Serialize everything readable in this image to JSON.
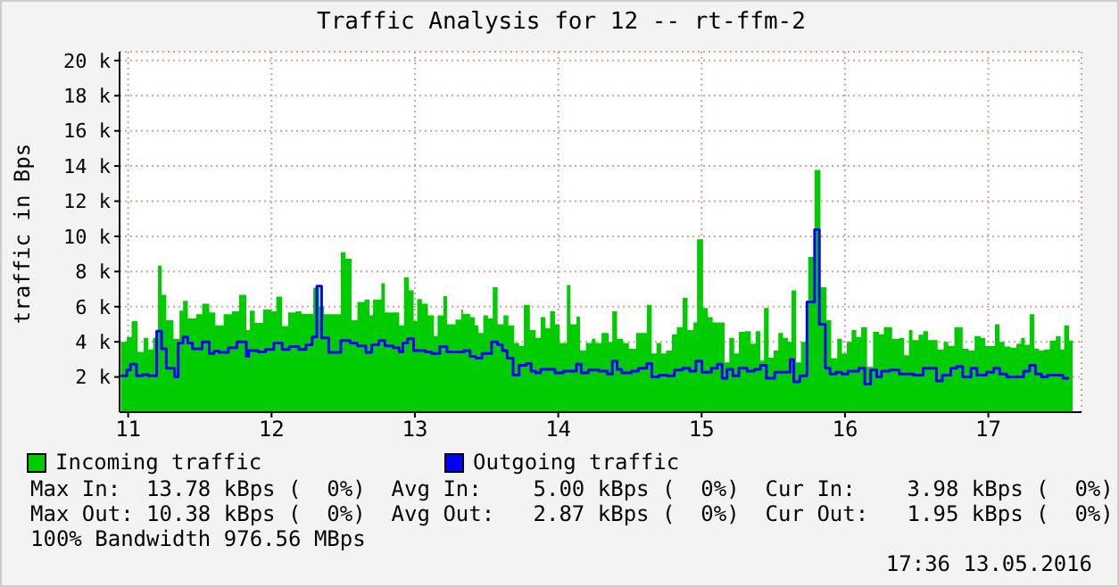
{
  "chart_data": {
    "type": "area",
    "title": "Traffic Analysis for 12 -- rt-ffm-2",
    "ylabel": "traffic in Bps",
    "xlim": [
      10.94,
      17.65
    ],
    "xticks": [
      11,
      12,
      13,
      14,
      15,
      16,
      17
    ],
    "ylim": [
      0,
      20500
    ],
    "yticks": [
      {
        "value": 2000,
        "label": "2 k"
      },
      {
        "value": 4000,
        "label": "4 k"
      },
      {
        "value": 6000,
        "label": "6 k"
      },
      {
        "value": 8000,
        "label": "8 k"
      },
      {
        "value": 10000,
        "label": "10 k"
      },
      {
        "value": 12000,
        "label": "12 k"
      },
      {
        "value": 14000,
        "label": "14 k"
      },
      {
        "value": 16000,
        "label": "16 k"
      },
      {
        "value": 18000,
        "label": "18 k"
      },
      {
        "value": 20000,
        "label": "20 k"
      }
    ],
    "grid": true,
    "legend": "bottom",
    "series": [
      {
        "name": "Incoming traffic",
        "color": "#00cc00",
        "x": [
          10.949,
          10.991,
          11.024,
          11.066,
          11.108,
          11.141,
          11.174,
          11.208,
          11.233,
          11.266,
          11.316,
          11.358,
          11.383,
          11.416,
          11.474,
          11.516,
          11.566,
          11.608,
          11.666,
          11.724,
          11.774,
          11.824,
          11.849,
          11.883,
          11.941,
          11.999,
          12.033,
          12.074,
          12.116,
          12.166,
          12.208,
          12.291,
          12.333,
          12.366,
          12.449,
          12.483,
          12.516,
          12.558,
          12.599,
          12.649,
          12.683,
          12.708,
          12.766,
          12.791,
          12.849,
          12.891,
          12.924,
          12.958,
          12.991,
          13.016,
          13.049,
          13.091,
          13.133,
          13.158,
          13.199,
          13.224,
          13.283,
          13.324,
          13.335,
          13.385,
          13.418,
          13.443,
          13.477,
          13.51,
          13.543,
          13.577,
          13.618,
          13.652,
          13.693,
          13.727,
          13.76,
          13.802,
          13.843,
          13.877,
          13.91,
          13.943,
          13.977,
          14.01,
          14.06,
          14.085,
          14.127,
          14.152,
          14.193,
          14.235,
          14.26,
          14.302,
          14.352,
          14.377,
          14.41,
          14.452,
          14.493,
          14.543,
          14.618,
          14.652,
          14.685,
          14.718,
          14.752,
          14.793,
          14.827,
          14.868,
          14.902,
          14.943,
          14.968,
          15.01,
          15.043,
          15.077,
          15.118,
          15.16,
          15.193,
          15.227,
          15.26,
          15.302,
          15.343,
          15.377,
          15.41,
          15.435,
          15.468,
          15.502,
          15.535,
          15.568,
          15.602,
          15.627,
          15.66,
          15.693,
          15.743,
          15.788,
          15.829,
          15.871,
          15.904,
          15.946,
          15.979,
          16.013,
          16.046,
          16.079,
          16.113,
          16.154,
          16.196,
          16.238,
          16.271,
          16.329,
          16.379,
          16.413,
          16.446,
          16.471,
          16.513,
          16.546,
          16.579,
          16.646,
          16.688,
          16.721,
          16.763,
          16.821,
          16.863,
          16.904,
          16.946,
          16.979,
          17.021,
          17.046,
          17.079,
          17.113,
          17.154,
          17.196,
          17.229,
          17.254,
          17.288,
          17.321,
          17.354,
          17.388,
          17.429,
          17.471,
          17.504,
          17.529,
          17.563,
          17.588
        ],
        "values": [
          4000,
          4270,
          5170,
          3430,
          4230,
          3570,
          4230,
          8330,
          6670,
          5230,
          4170,
          5770,
          6330,
          5330,
          5570,
          6170,
          5670,
          4930,
          5570,
          5730,
          6670,
          4670,
          5770,
          5070,
          5830,
          5730,
          6570,
          4900,
          5670,
          5730,
          5600,
          7070,
          6000,
          5570,
          5570,
          9100,
          8730,
          5230,
          6270,
          6400,
          5500,
          6400,
          7330,
          5670,
          5670,
          4930,
          7670,
          6930,
          5170,
          6430,
          6170,
          5500,
          4330,
          5500,
          6600,
          5000,
          5270,
          5830,
          5600,
          5400,
          4930,
          4500,
          5500,
          5330,
          7100,
          5000,
          5500,
          4930,
          3930,
          3770,
          6100,
          4670,
          4230,
          5400,
          4770,
          5730,
          5000,
          3930,
          7230,
          5000,
          5430,
          3500,
          3930,
          4170,
          3930,
          4500,
          4000,
          5730,
          4170,
          3930,
          3600,
          4500,
          6100,
          3330,
          3930,
          3330,
          3500,
          4430,
          4830,
          6500,
          4670,
          5100,
          9830,
          5930,
          5400,
          5100,
          5100,
          2830,
          4230,
          3330,
          4570,
          4600,
          3900,
          4600,
          2930,
          5930,
          3100,
          3500,
          4500,
          4230,
          4000,
          6930,
          2830,
          4000,
          8830,
          13780,
          7100,
          5230,
          3070,
          4170,
          3330,
          4000,
          4670,
          4270,
          4830,
          2570,
          4570,
          4430,
          4830,
          4170,
          4230,
          3230,
          4670,
          4100,
          4400,
          4600,
          4100,
          3570,
          4000,
          3770,
          4830,
          3600,
          3500,
          4330,
          4230,
          3770,
          3770,
          5000,
          4000,
          3730,
          3670,
          3900,
          4230,
          3830,
          5570,
          3600,
          3500,
          3570,
          4070,
          4330,
          3570,
          4930,
          4070,
          4000
        ]
      },
      {
        "name": "Outgoing traffic",
        "type": "step",
        "color": "#0000ff",
        "x": [
          10.949,
          10.991,
          11.016,
          11.058,
          11.099,
          11.141,
          11.199,
          11.233,
          11.266,
          11.324,
          11.349,
          11.383,
          11.416,
          11.449,
          11.516,
          11.566,
          11.599,
          11.633,
          11.699,
          11.758,
          11.824,
          11.841,
          11.908,
          11.958,
          12.016,
          12.074,
          12.124,
          12.191,
          12.241,
          12.283,
          12.316,
          12.349,
          12.399,
          12.483,
          12.549,
          12.599,
          12.658,
          12.699,
          12.749,
          12.791,
          12.849,
          12.891,
          12.916,
          12.949,
          12.991,
          13.074,
          13.116,
          13.174,
          13.224,
          13.324,
          13.343,
          13.385,
          13.427,
          13.468,
          13.51,
          13.535,
          13.577,
          13.61,
          13.643,
          13.685,
          13.727,
          13.777,
          13.81,
          13.843,
          13.877,
          13.927,
          13.977,
          14.035,
          14.127,
          14.16,
          14.21,
          14.285,
          14.343,
          14.377,
          14.41,
          14.443,
          14.51,
          14.56,
          14.618,
          14.652,
          14.702,
          14.76,
          14.81,
          14.868,
          14.918,
          14.96,
          15.002,
          15.068,
          15.11,
          15.143,
          15.177,
          15.218,
          15.26,
          15.318,
          15.368,
          15.41,
          15.452,
          15.51,
          15.577,
          15.618,
          15.643,
          15.685,
          15.735,
          15.788,
          15.821,
          15.863,
          15.896,
          15.938,
          15.979,
          16.021,
          16.096,
          16.138,
          16.179,
          16.221,
          16.254,
          16.313,
          16.379,
          16.479,
          16.546,
          16.638,
          16.679,
          16.738,
          16.779,
          16.821,
          16.879,
          16.921,
          16.988,
          17.038,
          17.079,
          17.129,
          17.246,
          17.288,
          17.329,
          17.371,
          17.413,
          17.496,
          17.521,
          17.563
        ],
        "values": [
          2070,
          2400,
          2730,
          2070,
          2130,
          2070,
          4600,
          3600,
          2500,
          2000,
          3930,
          4270,
          3930,
          3600,
          4000,
          3330,
          3470,
          3400,
          3670,
          4000,
          3170,
          3500,
          3430,
          3570,
          3930,
          3570,
          3730,
          3570,
          3830,
          4270,
          7170,
          4230,
          3400,
          4070,
          3930,
          3770,
          3400,
          3830,
          4070,
          3770,
          3670,
          3430,
          3930,
          4170,
          3500,
          3430,
          3330,
          3730,
          3430,
          3430,
          3500,
          3170,
          3070,
          3330,
          3330,
          4000,
          3830,
          3500,
          3070,
          2100,
          2670,
          2770,
          2330,
          2230,
          2430,
          2430,
          2230,
          2330,
          2730,
          2230,
          2400,
          2330,
          2170,
          2900,
          2430,
          2230,
          2330,
          2500,
          2770,
          2000,
          2100,
          2070,
          2400,
          2500,
          2330,
          2900,
          2270,
          2500,
          2730,
          1930,
          2430,
          2070,
          2500,
          2330,
          2430,
          2670,
          1930,
          2270,
          2270,
          3000,
          1730,
          2070,
          6270,
          10380,
          5000,
          2500,
          2170,
          2270,
          2170,
          2330,
          2500,
          1600,
          2400,
          2000,
          2330,
          2400,
          2170,
          2100,
          2500,
          1770,
          2100,
          2500,
          2600,
          2000,
          2500,
          2100,
          2270,
          2500,
          2170,
          2000,
          2330,
          2670,
          2170,
          2000,
          2100,
          2100,
          1930,
          1930
        ]
      }
    ],
    "annotations": [
      "Max In:  13.78 kBps (  0%)  Avg In:    5.00 kBps (  0%)  Cur In:    3.98 kBps (  0%)",
      "Max Out: 10.38 kBps (  0%)  Avg Out:   2.87 kBps (  0%)  Cur Out:   1.95 kBps (  0%)",
      "100% Bandwidth 976.56 MBps",
      "17:36 13.05.2016"
    ]
  }
}
